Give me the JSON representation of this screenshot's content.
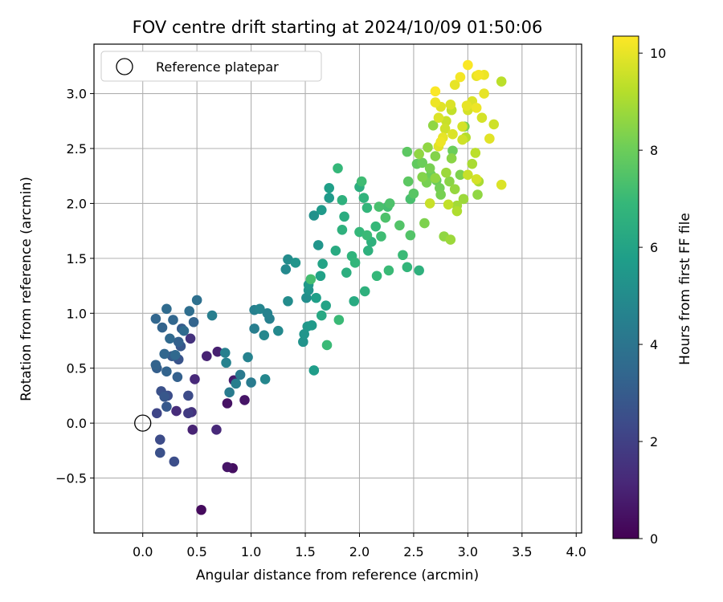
{
  "chart_data": {
    "type": "scatter",
    "title": "FOV centre drift starting at 2024/10/09 01:50:06",
    "xlabel": "Angular distance from reference (arcmin)",
    "ylabel": "Rotation from reference (arcmin)",
    "xlim": [
      -0.45,
      4.05
    ],
    "ylim": [
      -1.0,
      3.45
    ],
    "xticks": [
      "0.0",
      "0.5",
      "1.0",
      "1.5",
      "2.0",
      "2.5",
      "3.0",
      "3.5",
      "4.0"
    ],
    "yticks": [
      "−0.5",
      "0.0",
      "0.5",
      "1.0",
      "1.5",
      "2.0",
      "2.5",
      "3.0"
    ],
    "grid": true,
    "legend": {
      "placement": "top-left",
      "entries": [
        "Reference platepar"
      ]
    },
    "reference_point": {
      "x": 0.0,
      "y": 0.0
    },
    "colorbar": {
      "label": "Hours from first FF file",
      "range": [
        0,
        10.35
      ],
      "ticks": [
        "0",
        "2",
        "4",
        "6",
        "8",
        "10"
      ],
      "colormap": "viridis"
    },
    "points": [
      [
        0.12,
        0.95,
        3.4
      ],
      [
        0.22,
        1.04,
        3.6
      ],
      [
        0.18,
        0.87,
        3.3
      ],
      [
        0.25,
        0.77,
        3.5
      ],
      [
        0.28,
        0.94,
        3.4
      ],
      [
        0.33,
        0.74,
        3.2
      ],
      [
        0.3,
        0.62,
        3.5
      ],
      [
        0.2,
        0.63,
        3.4
      ],
      [
        0.36,
        0.86,
        3.0
      ],
      [
        0.38,
        0.84,
        3.6
      ],
      [
        0.43,
        1.02,
        3.7
      ],
      [
        0.47,
        0.92,
        3.3
      ],
      [
        0.5,
        1.12,
        3.8
      ],
      [
        0.35,
        0.7,
        2.8
      ],
      [
        0.12,
        0.53,
        3.3
      ],
      [
        0.13,
        0.5,
        3.1
      ],
      [
        0.22,
        0.47,
        3.3
      ],
      [
        0.32,
        0.42,
        3.2
      ],
      [
        0.27,
        0.61,
        3.0
      ],
      [
        0.33,
        0.58,
        2.7
      ],
      [
        0.44,
        0.77,
        1.5
      ],
      [
        0.48,
        0.4,
        1.2
      ],
      [
        0.17,
        0.29,
        2.6
      ],
      [
        0.2,
        0.24,
        2.8
      ],
      [
        0.23,
        0.25,
        2.5
      ],
      [
        0.42,
        0.25,
        2.4
      ],
      [
        0.13,
        0.09,
        2.2
      ],
      [
        0.22,
        0.15,
        2.9
      ],
      [
        0.31,
        0.11,
        1.3
      ],
      [
        0.42,
        0.09,
        1.8
      ],
      [
        0.45,
        0.1,
        1.5
      ],
      [
        0.59,
        0.61,
        1.0
      ],
      [
        0.69,
        0.65,
        0.9
      ],
      [
        0.78,
        0.18,
        0.5
      ],
      [
        0.84,
        0.39,
        0.8
      ],
      [
        0.94,
        0.21,
        0.6
      ],
      [
        0.46,
        -0.06,
        1.0
      ],
      [
        0.68,
        -0.06,
        1.2
      ],
      [
        0.16,
        -0.15,
        2.4
      ],
      [
        0.16,
        -0.27,
        2.6
      ],
      [
        0.29,
        -0.35,
        2.5
      ],
      [
        0.78,
        -0.4,
        0.6
      ],
      [
        0.83,
        -0.41,
        0.4
      ],
      [
        0.54,
        -0.79,
        0.3
      ],
      [
        0.64,
        0.98,
        4.4
      ],
      [
        0.76,
        0.64,
        4.5
      ],
      [
        0.77,
        0.55,
        4.6
      ],
      [
        0.8,
        0.28,
        4.3
      ],
      [
        0.86,
        0.36,
        4.4
      ],
      [
        0.9,
        0.44,
        4.2
      ],
      [
        0.97,
        0.6,
        4.6
      ],
      [
        1.0,
        0.37,
        4.3
      ],
      [
        1.03,
        1.03,
        4.5
      ],
      [
        1.08,
        1.04,
        4.7
      ],
      [
        1.03,
        0.86,
        4.4
      ],
      [
        1.12,
        0.8,
        4.8
      ],
      [
        1.15,
        1.0,
        4.6
      ],
      [
        1.17,
        0.95,
        4.5
      ],
      [
        1.25,
        0.84,
        4.9
      ],
      [
        1.13,
        0.4,
        4.8
      ],
      [
        1.32,
        1.4,
        4.9
      ],
      [
        1.34,
        1.49,
        5.0
      ],
      [
        1.41,
        1.46,
        5.4
      ],
      [
        1.34,
        1.11,
        5.0
      ],
      [
        1.48,
        0.74,
        5.3
      ],
      [
        1.49,
        0.81,
        5.4
      ],
      [
        1.52,
        0.88,
        5.5
      ],
      [
        1.56,
        0.89,
        5.6
      ],
      [
        1.58,
        0.48,
        5.7
      ],
      [
        1.51,
        1.14,
        5.1
      ],
      [
        1.53,
        1.21,
        5.3
      ],
      [
        1.53,
        1.26,
        5.5
      ],
      [
        1.6,
        1.14,
        5.8
      ],
      [
        1.55,
        1.31,
        7.2
      ],
      [
        1.58,
        1.89,
        5.2
      ],
      [
        1.65,
        1.94,
        5.6
      ],
      [
        1.62,
        1.62,
        5.4
      ],
      [
        1.64,
        1.34,
        5.9
      ],
      [
        1.66,
        1.45,
        6.0
      ],
      [
        1.65,
        0.98,
        6.2
      ],
      [
        1.69,
        1.07,
        6.0
      ],
      [
        1.7,
        0.71,
        7.0
      ],
      [
        1.72,
        2.14,
        5.8
      ],
      [
        1.72,
        2.05,
        5.6
      ],
      [
        1.8,
        2.32,
        6.9
      ],
      [
        1.84,
        2.03,
        6.6
      ],
      [
        1.86,
        1.88,
        6.4
      ],
      [
        1.84,
        1.76,
        6.6
      ],
      [
        1.78,
        1.57,
        6.3
      ],
      [
        1.81,
        0.94,
        7.0
      ],
      [
        1.88,
        1.37,
        6.5
      ],
      [
        1.93,
        1.52,
        6.7
      ],
      [
        1.95,
        1.11,
        6.3
      ],
      [
        1.96,
        1.46,
        6.8
      ],
      [
        2.0,
        1.74,
        6.9
      ],
      [
        2.0,
        2.15,
        6.5
      ],
      [
        2.02,
        2.2,
        7.1
      ],
      [
        2.04,
        2.05,
        6.7
      ],
      [
        2.07,
        1.96,
        6.8
      ],
      [
        2.08,
        1.57,
        6.6
      ],
      [
        2.07,
        1.71,
        7.0
      ],
      [
        2.05,
        1.2,
        6.6
      ],
      [
        2.11,
        1.65,
        6.6
      ],
      [
        2.15,
        1.79,
        6.9
      ],
      [
        2.16,
        1.34,
        6.9
      ],
      [
        2.18,
        1.97,
        7.3
      ],
      [
        2.2,
        1.7,
        7.1
      ],
      [
        2.24,
        1.87,
        7.4
      ],
      [
        2.26,
        1.97,
        7.2
      ],
      [
        2.28,
        2.0,
        7.4
      ],
      [
        2.27,
        1.39,
        7.0
      ],
      [
        2.37,
        1.8,
        7.5
      ],
      [
        2.4,
        1.53,
        7.0
      ],
      [
        2.44,
        1.42,
        6.8
      ],
      [
        2.55,
        1.39,
        6.6
      ],
      [
        2.47,
        1.71,
        7.5
      ],
      [
        2.44,
        2.47,
        7.7
      ],
      [
        2.45,
        2.2,
        7.7
      ],
      [
        2.47,
        2.04,
        7.3
      ],
      [
        2.5,
        2.09,
        7.6
      ],
      [
        2.53,
        2.36,
        7.8
      ],
      [
        2.58,
        2.37,
        8.0
      ],
      [
        2.6,
        1.82,
        8.3
      ],
      [
        2.63,
        2.51,
        8.6
      ],
      [
        2.65,
        2.32,
        8.2
      ],
      [
        2.66,
        2.26,
        8.0
      ],
      [
        2.7,
        2.43,
        8.4
      ],
      [
        2.71,
        2.21,
        7.9
      ],
      [
        2.74,
        2.14,
        8.1
      ],
      [
        2.75,
        2.08,
        8.2
      ],
      [
        2.78,
        1.7,
        8.6
      ],
      [
        2.84,
        1.67,
        8.8
      ],
      [
        2.8,
        2.28,
        8.8
      ],
      [
        2.85,
        2.41,
        8.5
      ],
      [
        2.86,
        2.48,
        8.0
      ],
      [
        2.88,
        2.13,
        8.7
      ],
      [
        2.9,
        1.98,
        8.9
      ],
      [
        2.93,
        2.26,
        8.3
      ],
      [
        2.96,
        2.04,
        8.8
      ],
      [
        2.97,
        2.7,
        8.2
      ],
      [
        2.98,
        2.6,
        9.2
      ],
      [
        3.0,
        2.85,
        9.7
      ],
      [
        3.04,
        2.36,
        9.0
      ],
      [
        3.07,
        2.46,
        9.3
      ],
      [
        3.09,
        2.08,
        8.6
      ],
      [
        3.1,
        2.2,
        9.0
      ],
      [
        3.13,
        2.78,
        9.7
      ],
      [
        3.2,
        2.59,
        9.9
      ],
      [
        3.24,
        2.72,
        9.6
      ],
      [
        3.31,
        2.17,
        9.8
      ],
      [
        3.31,
        3.11,
        9.3
      ],
      [
        3.1,
        3.17,
        10.2
      ],
      [
        3.15,
        3.17,
        10.1
      ],
      [
        3.0,
        3.26,
        10.3
      ],
      [
        3.08,
        3.16,
        10.0
      ],
      [
        2.93,
        3.15,
        10.2
      ],
      [
        2.88,
        3.08,
        10.0
      ],
      [
        2.7,
        3.02,
        10.3
      ],
      [
        2.7,
        2.92,
        10.1
      ],
      [
        2.75,
        2.88,
        9.9
      ],
      [
        2.73,
        2.78,
        9.8
      ],
      [
        2.8,
        2.75,
        9.5
      ],
      [
        2.84,
        2.9,
        9.8
      ],
      [
        2.85,
        2.85,
        9.4
      ],
      [
        2.95,
        2.7,
        9.7
      ],
      [
        2.95,
        2.58,
        9.6
      ],
      [
        2.99,
        2.89,
        10.0
      ],
      [
        3.04,
        2.93,
        9.8
      ],
      [
        3.08,
        2.87,
        10.1
      ],
      [
        3.15,
        3.0,
        10.0
      ],
      [
        2.73,
        2.52,
        9.9
      ],
      [
        2.79,
        2.68,
        9.6
      ],
      [
        2.86,
        2.63,
        9.8
      ],
      [
        3.08,
        2.22,
        9.7
      ],
      [
        2.68,
        2.71,
        8.6
      ],
      [
        2.65,
        2.0,
        9.5
      ],
      [
        2.82,
        1.99,
        9.4
      ],
      [
        2.7,
        2.23,
        8.6
      ],
      [
        2.9,
        1.93,
        9.1
      ],
      [
        2.75,
        2.56,
        10.1
      ],
      [
        2.77,
        2.6,
        10.0
      ],
      [
        3.0,
        2.26,
        9.5
      ],
      [
        2.58,
        2.24,
        8.4
      ],
      [
        2.62,
        2.19,
        8.2
      ],
      [
        2.55,
        2.45,
        8.6
      ],
      [
        2.83,
        2.2,
        8.5
      ]
    ]
  }
}
